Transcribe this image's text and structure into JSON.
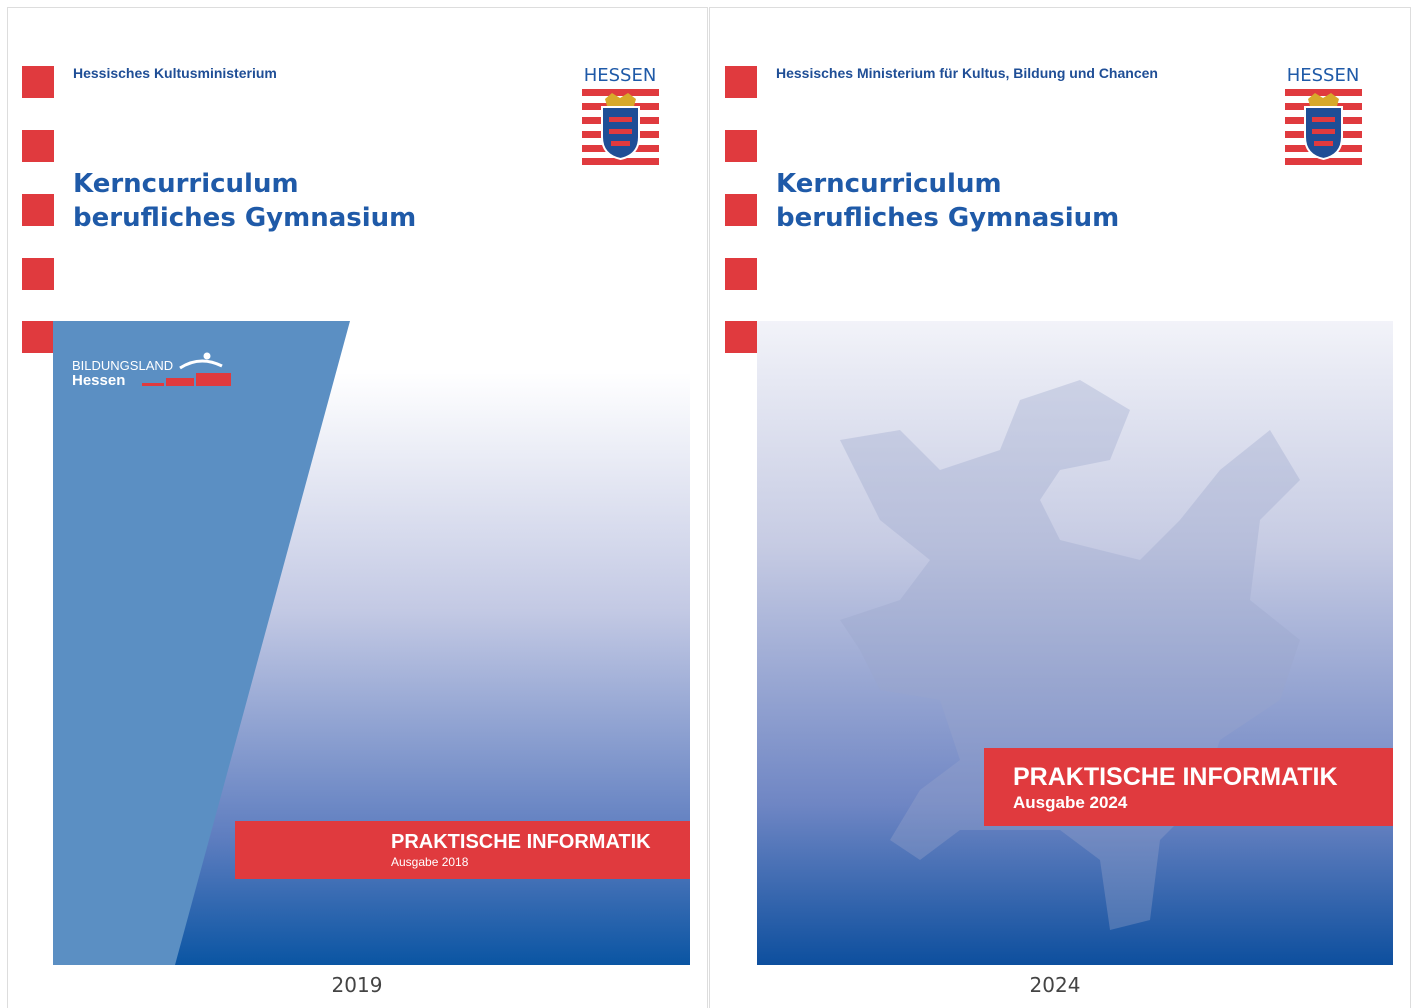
{
  "covers": [
    {
      "ministry": "Hessisches Kultusministerium",
      "state": "HESSEN",
      "title_line1": "Kerncurriculum",
      "title_line2": "berufliches Gymnasium",
      "brand_line1": "BILDUNGSLAND",
      "brand_line2": "Hessen",
      "subject": "PRAKTISCHE INFORMATIK",
      "edition": "Ausgabe 2018",
      "caption": "2019"
    },
    {
      "ministry": "Hessisches Ministerium für Kultus, Bildung und Chancen",
      "state": "HESSEN",
      "title_line1": "Kerncurriculum",
      "title_line2": "berufliches Gymnasium",
      "subject": "PRAKTISCHE INFORMATIK",
      "edition": "Ausgabe 2024",
      "caption": "2024"
    }
  ]
}
